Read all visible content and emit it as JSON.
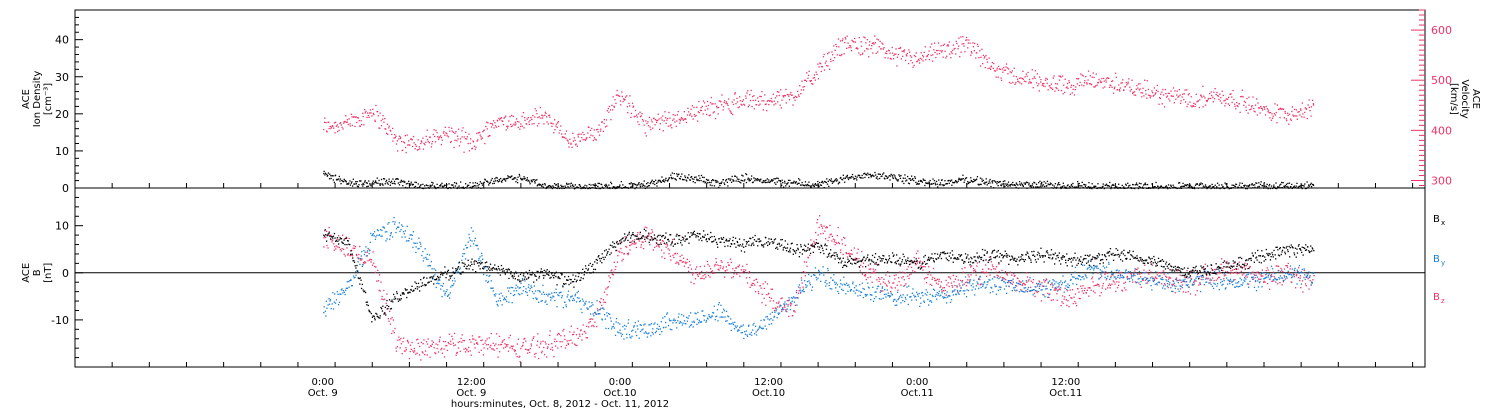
{
  "colors": {
    "black": "#000000",
    "pink": "#ee3366",
    "blue": "#1a80d9"
  },
  "chart_data": [
    {
      "type": "scatter",
      "panel": "plasma",
      "ylabel": [
        "ACE",
        "Ion Density",
        "[cm⁻³]"
      ],
      "y2label": [
        "ACE",
        "Velocity",
        "[km/s]"
      ],
      "ylim": [
        0,
        48
      ],
      "y2lim": [
        285,
        640
      ],
      "yticks": [
        0,
        10,
        20,
        30,
        40
      ],
      "y2ticks": [
        300,
        400,
        500,
        600
      ],
      "series": [
        {
          "name": "Ion Density",
          "axis": "left",
          "color": "#000000",
          "x": [
            0,
            2,
            4,
            6,
            8,
            10,
            12,
            14,
            16,
            18,
            20,
            22,
            24,
            26,
            28,
            30,
            32,
            34,
            36,
            38,
            40,
            42,
            44,
            46,
            48,
            50,
            52,
            54,
            56,
            58,
            60,
            62,
            64,
            66,
            68,
            70,
            72,
            74,
            76,
            78,
            80
          ],
          "y": [
            4,
            1.5,
            1.5,
            2,
            0.5,
            0.5,
            0.5,
            2.5,
            3,
            0.5,
            0.5,
            0.5,
            0.5,
            1,
            3,
            2.5,
            1.5,
            3,
            2,
            1.5,
            1,
            2.5,
            4,
            3,
            2,
            1.5,
            2.5,
            1.5,
            1,
            1,
            0.5,
            0.5,
            0.5,
            0.5,
            0.5,
            0.5,
            0.5,
            0.5,
            0.5,
            0.5,
            1
          ]
        },
        {
          "name": "Velocity",
          "axis": "right",
          "color": "#ee3366",
          "x": [
            0,
            2,
            4,
            6,
            8,
            10,
            12,
            14,
            16,
            18,
            20,
            22,
            24,
            26,
            28,
            30,
            32,
            34,
            36,
            38,
            40,
            42,
            44,
            46,
            48,
            50,
            52,
            54,
            56,
            58,
            60,
            62,
            64,
            66,
            68,
            70,
            72,
            74,
            76,
            78,
            80
          ],
          "y": [
            410,
            415,
            440,
            380,
            375,
            395,
            375,
            420,
            415,
            430,
            375,
            395,
            475,
            410,
            420,
            440,
            450,
            460,
            460,
            470,
            520,
            575,
            570,
            555,
            540,
            560,
            570,
            530,
            505,
            500,
            490,
            500,
            495,
            480,
            470,
            465,
            470,
            460,
            440,
            435,
            445
          ]
        }
      ]
    },
    {
      "type": "scatter",
      "panel": "magnetic_field",
      "ylabel": [
        "ACE",
        "B",
        "[nT]"
      ],
      "ylim": [
        -20,
        18
      ],
      "yticks": [
        -10,
        0,
        10
      ],
      "zero_line": true,
      "legend": [
        "B",
        "B",
        "B"
      ],
      "legend_subscripts": [
        "x",
        "y",
        "z"
      ],
      "legend_placement": "right",
      "series": [
        {
          "name": "Bx",
          "color": "#000000",
          "x": [
            0,
            2,
            4,
            6,
            8,
            10,
            12,
            14,
            16,
            18,
            20,
            22,
            24,
            26,
            28,
            30,
            32,
            34,
            36,
            38,
            40,
            42,
            44,
            46,
            48,
            50,
            52,
            54,
            56,
            58,
            60,
            62,
            64,
            66,
            68,
            70,
            72,
            74,
            76,
            78,
            80
          ],
          "y": [
            8,
            7,
            -10,
            -5,
            -2,
            0,
            2,
            1,
            -1,
            0,
            -2,
            2,
            7,
            8,
            7,
            8,
            7,
            6,
            7,
            5,
            6,
            2,
            3,
            3,
            2,
            4,
            3,
            4,
            3,
            4,
            3,
            3,
            4,
            3,
            2,
            0,
            1,
            2,
            4,
            5,
            5
          ]
        },
        {
          "name": "By",
          "color": "#1a80d9",
          "x": [
            0,
            2,
            4,
            6,
            8,
            10,
            12,
            14,
            16,
            18,
            20,
            22,
            24,
            26,
            28,
            30,
            32,
            34,
            36,
            38,
            40,
            42,
            44,
            46,
            48,
            50,
            52,
            54,
            56,
            58,
            60,
            62,
            64,
            66,
            68,
            70,
            72,
            74,
            76,
            78,
            80
          ],
          "y": [
            -8,
            -3,
            8,
            10,
            5,
            -5,
            8,
            -6,
            -3,
            -5,
            -5,
            -8,
            -12,
            -12,
            -10,
            -10,
            -8,
            -13,
            -10,
            -5,
            0,
            -3,
            -4,
            -5,
            -5,
            -5,
            -3,
            -2,
            -3,
            -3,
            -2,
            1,
            0,
            -1,
            -2,
            -2,
            -1,
            -2,
            -1,
            0,
            -1
          ]
        },
        {
          "name": "Bz",
          "color": "#ee3366",
          "x": [
            0,
            2,
            4,
            6,
            8,
            10,
            12,
            14,
            16,
            18,
            20,
            22,
            24,
            26,
            28,
            30,
            32,
            34,
            36,
            38,
            40,
            42,
            44,
            46,
            48,
            50,
            52,
            54,
            56,
            58,
            60,
            62,
            64,
            66,
            68,
            70,
            72,
            74,
            76,
            78,
            80
          ],
          "y": [
            8,
            5,
            3,
            -15,
            -16,
            -15,
            -15,
            -15,
            -16,
            -15,
            -14,
            -10,
            5,
            8,
            5,
            0,
            2,
            0,
            -5,
            -8,
            11,
            6,
            0,
            -2,
            2,
            -3,
            -1,
            1,
            -2,
            -3,
            -5,
            -3,
            -2,
            0,
            -1,
            -2,
            0,
            1,
            -1,
            0,
            -2
          ]
        }
      ]
    }
  ],
  "x_axis": {
    "xlim": [
      -20,
      89
    ],
    "ticks": [
      {
        "x": 0,
        "line1": "0:00",
        "line2": "Oct. 9"
      },
      {
        "x": 12,
        "line1": "12:00",
        "line2": "Oct. 9"
      },
      {
        "x": 24,
        "line1": "0:00",
        "line2": "Oct.10"
      },
      {
        "x": 36,
        "line1": "12:00",
        "line2": "Oct.10"
      },
      {
        "x": 48,
        "line1": "0:00",
        "line2": "Oct.11"
      },
      {
        "x": 60,
        "line1": "12:00",
        "line2": "Oct.11"
      }
    ],
    "xlabel": "hours:minutes, Oct.  8, 2012 - Oct. 11, 2012"
  }
}
